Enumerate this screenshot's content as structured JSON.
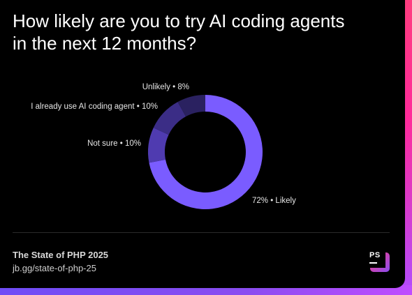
{
  "title": {
    "line1": "How likely are you to try AI coding agents",
    "line2": "in the next 12 months?"
  },
  "chart_data": {
    "type": "pie",
    "donut": true,
    "slices": [
      {
        "label": "Likely",
        "value": 72,
        "text": "72% • Likely",
        "color": "#7a5cff"
      },
      {
        "label": "Not sure",
        "value": 10,
        "text": "Not sure • 10%",
        "color": "#4f3bb0"
      },
      {
        "label": "I already use AI coding agent",
        "value": 10,
        "text": "I already use AI coding agent • 10%",
        "color": "#3b2d86"
      },
      {
        "label": "Unlikely",
        "value": 8,
        "text": "Unlikely • 8%",
        "color": "#2a2160"
      }
    ]
  },
  "footer": {
    "source_title": "The State of PHP 2025",
    "link": "jb.gg/state-of-php-25"
  },
  "logo": {
    "text": "PS"
  },
  "colors": {
    "background": "#000000",
    "accent_pink": "#ff3d7f",
    "accent_purple": "#8a4cf0"
  }
}
